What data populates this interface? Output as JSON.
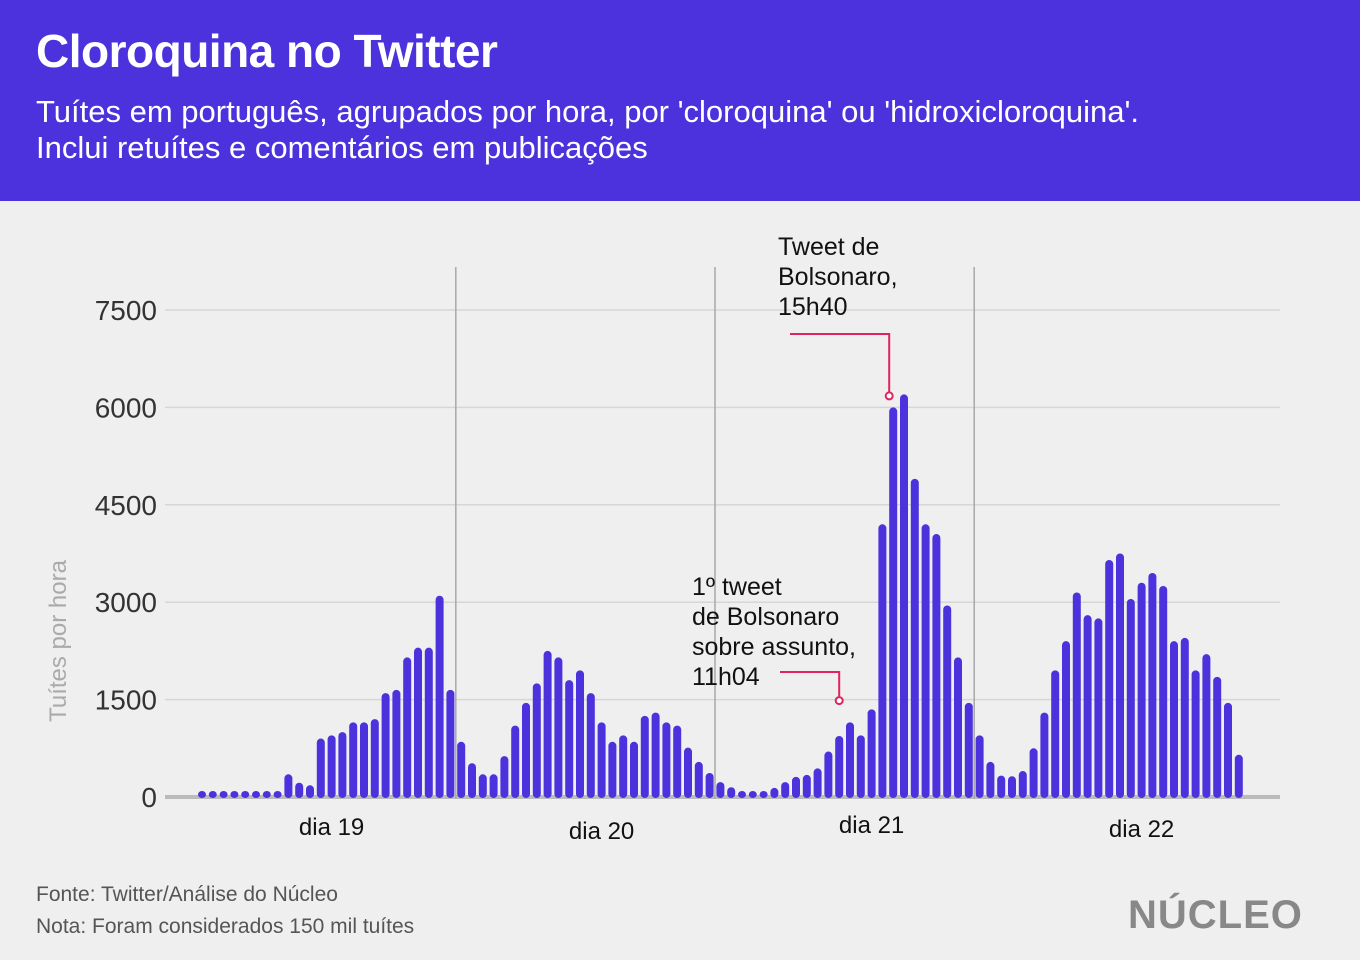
{
  "title": "Cloroquina no Twitter",
  "subtitle_line1": "Tuítes em português, agrupados por hora, por 'cloroquina' ou 'hidroxicloroquina'.",
  "subtitle_line2": "Inclui retuítes e comentários em publicações",
  "footer": {
    "source": "Fonte: Twitter/Análise do Núcleo",
    "note": "Nota: Foram considerados 150 mil tuítes",
    "logo": "NÚCLEO"
  },
  "colors": {
    "header": "#4b32dd",
    "bar": "#4b32dd",
    "annotation": "#e0245e",
    "grid": "#d6d6d6"
  },
  "chart_data": {
    "type": "bar",
    "title": "Cloroquina no Twitter",
    "ylabel": "Tuítes por hora",
    "xlabel": "",
    "ylim": [
      0,
      7500
    ],
    "yticks": [
      0,
      1500,
      3000,
      4500,
      6000,
      7500
    ],
    "grid": true,
    "days": [
      "dia 19",
      "dia 20",
      "dia 21",
      "dia 22"
    ],
    "day_start_index": [
      0,
      24,
      48,
      72
    ],
    "day_label_index": [
      12,
      37,
      62,
      87
    ],
    "values": [
      5,
      5,
      5,
      5,
      5,
      5,
      5,
      5,
      350,
      220,
      180,
      900,
      950,
      1000,
      1150,
      1150,
      1200,
      1600,
      1650,
      2150,
      2300,
      2300,
      3100,
      1650,
      850,
      520,
      350,
      350,
      630,
      1100,
      1450,
      1750,
      2250,
      2150,
      1800,
      1950,
      1600,
      1150,
      850,
      950,
      850,
      1250,
      1300,
      1150,
      1100,
      760,
      540,
      370,
      230,
      150,
      90,
      80,
      90,
      140,
      230,
      310,
      340,
      440,
      700,
      940,
      1150,
      950,
      1350,
      4200,
      6000,
      6200,
      4900,
      4200,
      4050,
      2950,
      2150,
      1450,
      950,
      540,
      330,
      320,
      400,
      750,
      1300,
      1950,
      2400,
      3150,
      2800,
      2750,
      3650,
      3750,
      3050,
      3300,
      3450,
      3250,
      2400,
      2450,
      1950,
      2200,
      1850,
      1450,
      650
    ],
    "annotations": [
      {
        "lines": [
          "1º tweet",
          "de Bolsonaro",
          "sobre assunto,",
          " 11h04"
        ],
        "index": 59,
        "value": 1300
      },
      {
        "lines": [
          "Tweet de",
          "Bolsonaro,",
          "15h40"
        ],
        "index": 64,
        "value": 6100
      }
    ]
  }
}
